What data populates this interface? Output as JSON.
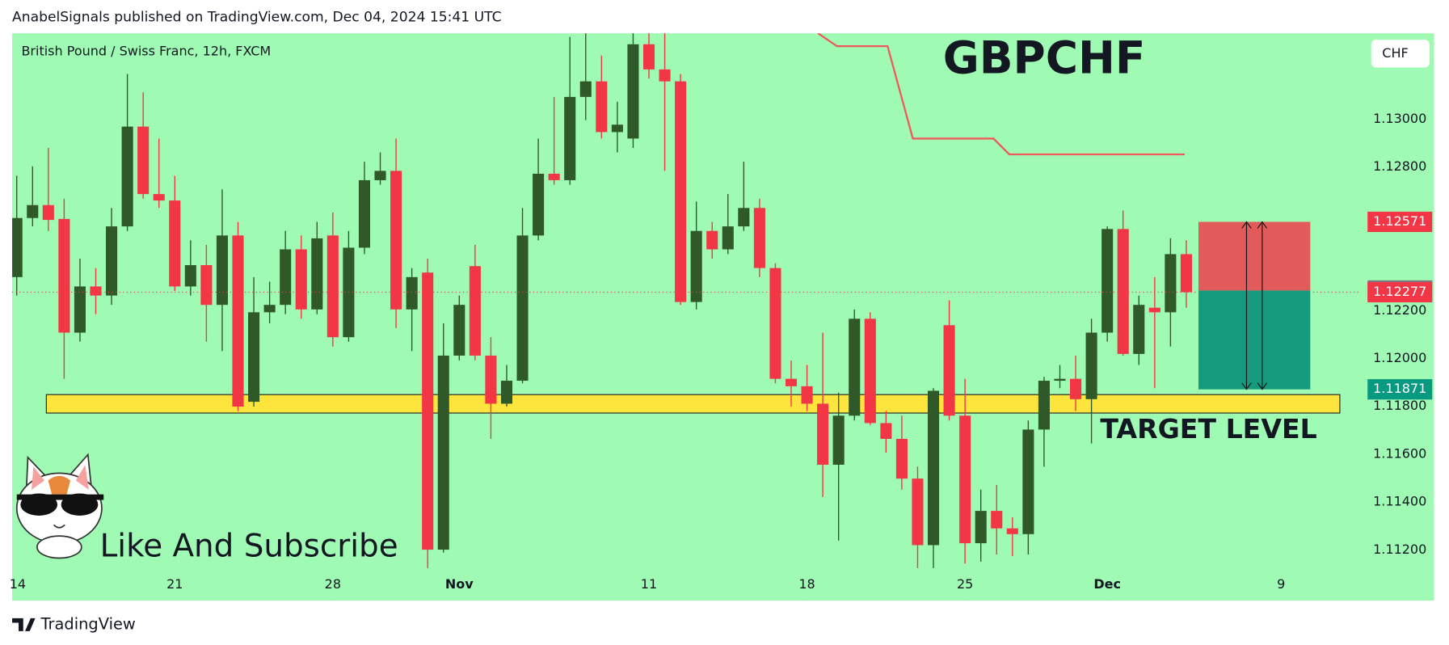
{
  "header": "AnabelSignals published on TradingView.com, Dec 04, 2024 15:41 UTC",
  "footer": "TradingView",
  "chart_data": {
    "type": "candlestick",
    "title": "GBPCHF",
    "subtitle": "British Pound / Swiss Franc, 12h, FXCM",
    "currency": "CHF",
    "annotations": [
      "TARGET LEVEL",
      "Like And Subscribe"
    ],
    "up_color": "#30592a",
    "down_color": "#f23645",
    "background": "#9ffab4",
    "xlim": [
      -0.29,
      85
    ],
    "xticks": [
      {
        "value": 0,
        "label": "14"
      },
      {
        "value": 10,
        "label": "21"
      },
      {
        "value": 20,
        "label": "28"
      },
      {
        "value": 28,
        "label": "Nov"
      },
      {
        "value": 40,
        "label": "11"
      },
      {
        "value": 50,
        "label": "18"
      },
      {
        "value": 60,
        "label": "25"
      },
      {
        "value": 69,
        "label": "Dec"
      },
      {
        "value": 80,
        "label": "9"
      }
    ],
    "ylim": [
      1.10988,
      1.13359
    ],
    "yticks": [
      {
        "value": 1.13,
        "label": "1.13000"
      },
      {
        "value": 1.128,
        "label": "1.12800"
      },
      {
        "value": 1.122,
        "label": "1.12200"
      },
      {
        "value": 1.12,
        "label": "1.12000"
      },
      {
        "value": 1.118,
        "label": "1.11800"
      },
      {
        "value": 1.116,
        "label": "1.11600"
      },
      {
        "value": 1.114,
        "label": "1.11400"
      },
      {
        "value": 1.112,
        "label": "1.11200"
      }
    ],
    "open": [
      1.1234,
      1.12587,
      1.12641,
      1.12583,
      1.12108,
      1.12301,
      1.12263,
      1.12552,
      1.12969,
      1.12687,
      1.1266,
      1.12301,
      1.1239,
      1.12224,
      1.12514,
      1.11819,
      1.12193,
      1.12224,
      1.12456,
      1.12205,
      1.12514,
      1.12089,
      1.12463,
      1.12745,
      1.12784,
      1.12205,
      1.12359,
      1.11201,
      1.12012,
      1.12386,
      1.12012,
      1.11811,
      1.11907,
      1.12514,
      1.12772,
      1.12745,
      1.13093,
      1.13158,
      1.12946,
      1.12919,
      1.13313,
      1.13208,
      1.13158,
      1.12236,
      1.12533,
      1.12456,
      1.12552,
      1.12629,
      1.12378,
      1.11915,
      1.11884,
      1.11811,
      1.11556,
      1.11761,
      1.12166,
      1.1173,
      1.11664,
      1.11498,
      1.1122,
      1.12139,
      1.11761,
      1.11228,
      1.11363,
      1.1129,
      1.11266,
      1.11703,
      1.11907,
      1.11915,
      1.1183,
      1.12108,
      1.12541,
      1.12019,
      1.12212,
      1.12193,
      1.12436
    ],
    "high": [
      1.12764,
      1.12803,
      1.1288,
      1.12668,
      1.12417,
      1.12378,
      1.12629,
      1.13189,
      1.13112,
      1.12919,
      1.12764,
      1.12494,
      1.12475,
      1.12707,
      1.12571,
      1.1234,
      1.12321,
      1.12533,
      1.12514,
      1.12571,
      1.1261,
      1.12533,
      1.12822,
      1.12861,
      1.12919,
      1.12378,
      1.12417,
      1.12147,
      1.12263,
      1.12475,
      1.12089,
      1.11973,
      1.12629,
      1.12919,
      1.13093,
      1.13344,
      1.13359,
      1.13266,
      1.13073,
      1.13359,
      1.13359,
      1.13359,
      1.13189,
      1.12656,
      1.12571,
      1.12687,
      1.12822,
      1.12668,
      1.12398,
      1.11992,
      1.11973,
      1.12108,
      1.11857,
      1.12205,
      1.12193,
      1.1178,
      1.11761,
      1.11548,
      1.11876,
      1.12243,
      1.11915,
      1.11452,
      1.11471,
      1.11336,
      1.11741,
      1.11923,
      1.11973,
      1.12012,
      1.12166,
      1.12552,
      1.12618,
      1.12263,
      1.1234,
      1.12502,
      1.12494
    ],
    "low": [
      1.12263,
      1.12552,
      1.12533,
      1.11915,
      1.1207,
      1.12185,
      1.12224,
      1.12533,
      1.12668,
      1.12629,
      1.12282,
      1.12263,
      1.1207,
      1.12031,
      1.1178,
      1.11799,
      1.12147,
      1.12185,
      1.12166,
      1.12185,
      1.1205,
      1.1207,
      1.12436,
      1.12726,
      1.12127,
      1.12031,
      1.11124,
      1.11189,
      1.11992,
      1.11992,
      1.11664,
      1.11799,
      1.11896,
      1.12494,
      1.12726,
      1.12726,
      1.12996,
      1.12919,
      1.12861,
      1.1288,
      1.1317,
      1.12784,
      1.12224,
      1.12205,
      1.12417,
      1.12436,
      1.12533,
      1.1234,
      1.11896,
      1.11799,
      1.1178,
      1.11421,
      1.11239,
      1.11741,
      1.11722,
      1.11606,
      1.11452,
      1.11124,
      1.11124,
      1.11741,
      1.11143,
      1.11151,
      1.11181,
      1.11174,
      1.11181,
      1.11548,
      1.11876,
      1.1178,
      1.11645,
      1.1207,
      1.12012,
      1.11973,
      1.11876,
      1.1205,
      1.12212
    ],
    "close": [
      1.12587,
      1.12641,
      1.12579,
      1.12108,
      1.12301,
      1.12263,
      1.12552,
      1.12969,
      1.12687,
      1.1266,
      1.12301,
      1.1239,
      1.12224,
      1.12514,
      1.11799,
      1.12193,
      1.12224,
      1.12456,
      1.12205,
      1.12502,
      1.12089,
      1.12463,
      1.12745,
      1.12784,
      1.12205,
      1.1234,
      1.11201,
      1.12012,
      1.12224,
      1.12012,
      1.11811,
      1.11907,
      1.12514,
      1.12772,
      1.12745,
      1.13093,
      1.13158,
      1.12946,
      1.12977,
      1.13313,
      1.13208,
      1.13158,
      1.12236,
      1.12533,
      1.12456,
      1.12552,
      1.12629,
      1.12378,
      1.11915,
      1.11884,
      1.11811,
      1.11556,
      1.11761,
      1.12166,
      1.1173,
      1.11664,
      1.11498,
      1.1122,
      1.11865,
      1.11761,
      1.11228,
      1.11363,
      1.1129,
      1.11266,
      1.11703,
      1.11907,
      1.11915,
      1.1183,
      1.12108,
      1.12541,
      1.12019,
      1.12224,
      1.12193,
      1.12436,
      1.12277
    ],
    "trend_line": {
      "color": "#f0595c",
      "x": [
        50.7,
        51.9,
        55.1,
        56.7,
        61.8,
        62.8,
        73.9
      ],
      "values": [
        1.13359,
        1.13305,
        1.13305,
        1.12919,
        1.12919,
        1.12853,
        1.12853
      ]
    },
    "zone": {
      "color": "#fde53d",
      "low": 1.11772,
      "high": 1.11849
    },
    "position": {
      "stop": 1.12571,
      "entry": 1.12284,
      "target": 1.11871,
      "stop_color": "#e15b5b",
      "target_color": "#159a7e"
    }
  }
}
